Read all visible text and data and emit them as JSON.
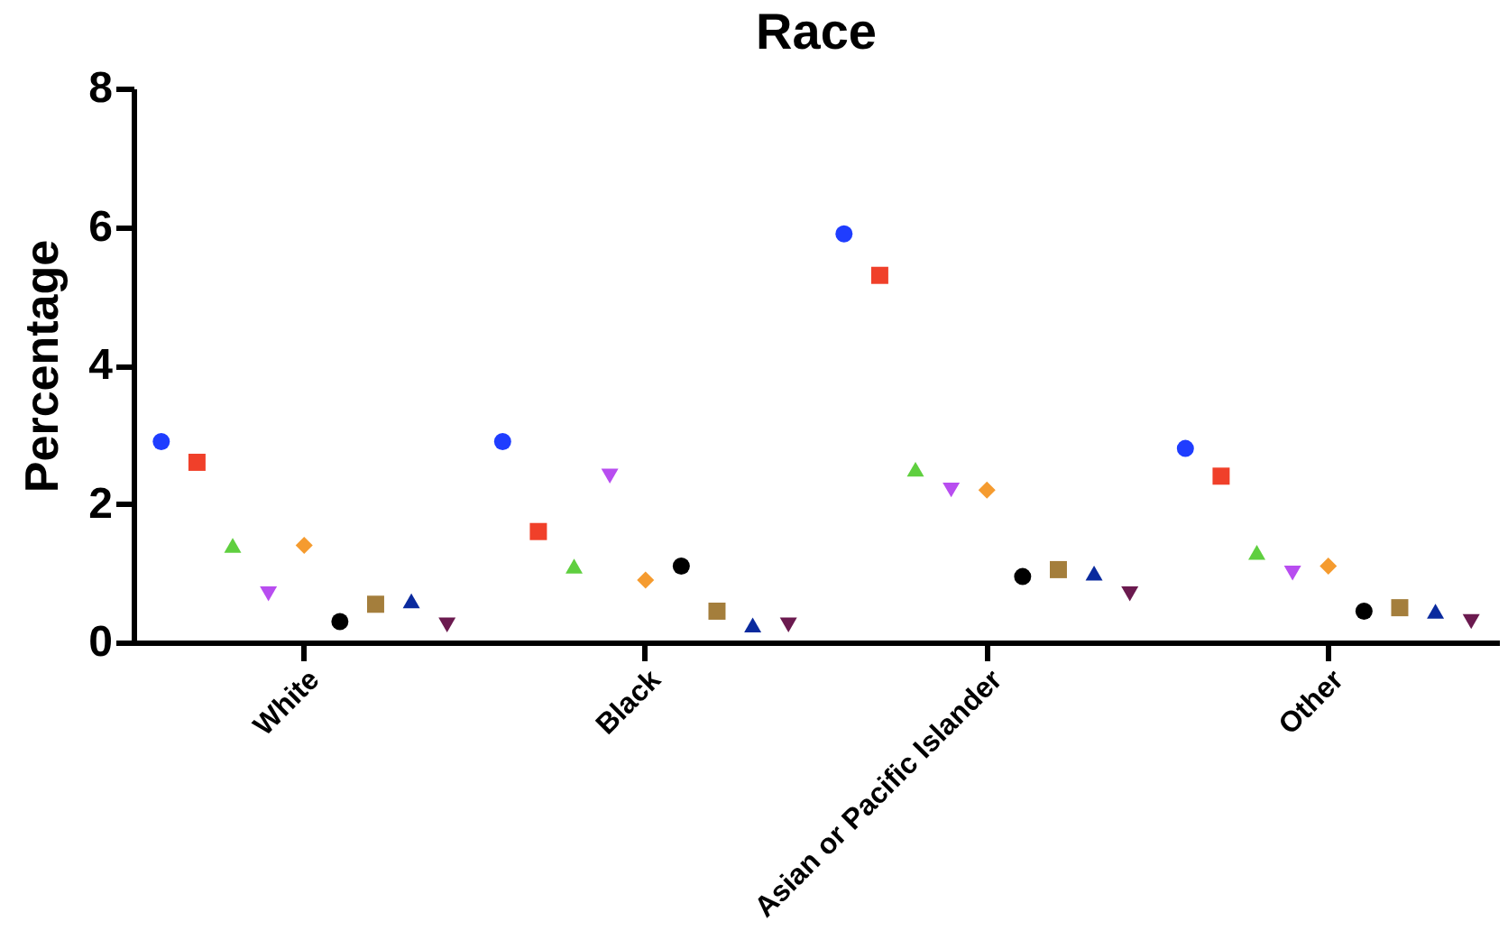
{
  "chart_data": {
    "type": "scatter",
    "title": "Race",
    "ylabel": "Percentage",
    "categories": [
      "White",
      "Black",
      "Asian or Pacific Islander",
      "Other"
    ],
    "series": [
      {
        "color": "#1f3dff",
        "marker": "circle",
        "values": [
          2.9,
          2.9,
          5.9,
          2.8
        ]
      },
      {
        "color": "#f0402a",
        "marker": "square",
        "values": [
          2.6,
          1.6,
          5.3,
          2.4
        ]
      },
      {
        "color": "#5fcf3f",
        "marker": "triangle",
        "values": [
          1.4,
          1.1,
          2.5,
          1.3
        ]
      },
      {
        "color": "#b84df0",
        "marker": "triangle-down",
        "values": [
          0.7,
          2.4,
          2.2,
          1.0
        ]
      },
      {
        "color": "#f59b2f",
        "marker": "diamond",
        "values": [
          1.4,
          0.9,
          2.2,
          1.1
        ]
      },
      {
        "color": "#000000",
        "marker": "circle",
        "values": [
          0.3,
          1.1,
          0.95,
          0.45
        ]
      },
      {
        "color": "#a47e3c",
        "marker": "square",
        "values": [
          0.55,
          0.45,
          1.05,
          0.5
        ]
      },
      {
        "color": "#0a2a9e",
        "marker": "triangle",
        "values": [
          0.6,
          0.25,
          1.0,
          0.45
        ]
      },
      {
        "color": "#6b1a4f",
        "marker": "triangle-down",
        "values": [
          0.25,
          0.25,
          0.7,
          0.3
        ]
      }
    ],
    "ylim": [
      0,
      8
    ],
    "yticks": [
      0,
      2,
      4,
      6,
      8
    ],
    "grid": false,
    "legend": false
  }
}
